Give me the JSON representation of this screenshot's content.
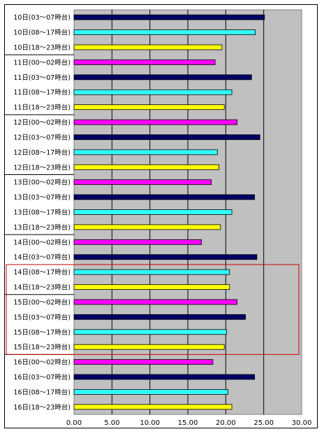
{
  "chart_data": {
    "type": "bar",
    "orientation": "horizontal",
    "title": "",
    "xlabel": "",
    "ylabel": "",
    "xlim": [
      0,
      30
    ],
    "x_ticks": [
      "0.00",
      "5.00",
      "10.00",
      "15.00",
      "20.00",
      "25.00",
      "30.00"
    ],
    "grid": true,
    "legend": "none",
    "plot_background": "#c0c0c0",
    "categories": [
      "10日(03～07時台)",
      "10日(08～17時台)",
      "10日(18～23時台)",
      "11日(00～02時台)",
      "11日(03～07時台)",
      "11日(08～17時台)",
      "11日(18～23時台)",
      "12日(00～02時台)",
      "12日(03～07時台)",
      "12日(08～17時台)",
      "12日(18～23時台)",
      "13日(00～02時台)",
      "13日(03～07時台)",
      "13日(08～17時台)",
      "13日(18～23時台)",
      "14日(00～02時台)",
      "14日(03～07時台)",
      "14日(08～17時台)",
      "14日(18～23時台)",
      "15日(00～02時台)",
      "15日(03～07時台)",
      "15日(08～17時台)",
      "15日(18～23時台)",
      "16日(00～02時台)",
      "16日(03～07時台)",
      "16日(08～17時台)",
      "16日(18～23時台)"
    ],
    "values": [
      25.1,
      23.9,
      19.5,
      18.6,
      23.4,
      20.8,
      19.8,
      21.5,
      24.5,
      18.9,
      19.1,
      18.1,
      23.8,
      20.8,
      19.3,
      16.8,
      24.1,
      20.5,
      20.5,
      21.5,
      22.6,
      20.1,
      19.8,
      18.3,
      23.8,
      20.3,
      20.8
    ],
    "slot_colors": {
      "00～02時台": "#ff00ff",
      "03～07時台": "#000066",
      "08～17時台": "#33ffff",
      "18～23時台": "#ffff00"
    },
    "highlight_box": {
      "color": "#cc0000",
      "from": "14日(08～17時台)",
      "to": "15日(18～23時台)"
    }
  }
}
